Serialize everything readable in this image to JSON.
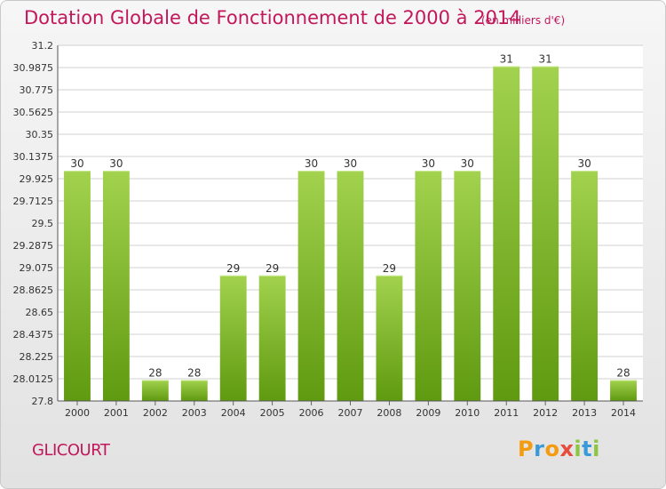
{
  "header": {
    "title": "Dotation Globale de Fonctionnement de 2000 à 2014",
    "unit": "(en milliers d'€)"
  },
  "footer": {
    "commune": "GLICOURT",
    "logo_letters": [
      "P",
      "r",
      "o",
      "x",
      "i",
      "t",
      "i"
    ],
    "logo_colors": [
      "#f39c12",
      "#3a9ad9",
      "#f39c12",
      "#e74c3c",
      "#8cc63f",
      "#3a9ad9",
      "#8cc63f"
    ]
  },
  "colors": {
    "bar_top": "#a2d24e",
    "bar_bottom": "#5f9a10",
    "grid": "#d0d0d0",
    "axis_text": "#333333",
    "title": "#c2185b"
  },
  "chart_data": {
    "type": "bar",
    "title": "Dotation Globale de Fonctionnement de 2000 à 2014",
    "subtitle": "(en milliers d'€)",
    "categories": [
      "2000",
      "2001",
      "2002",
      "2003",
      "2004",
      "2005",
      "2006",
      "2007",
      "2008",
      "2009",
      "2010",
      "2011",
      "2012",
      "2013",
      "2014"
    ],
    "values": [
      30,
      30,
      28,
      28,
      29,
      29,
      30,
      30,
      29,
      30,
      30,
      31,
      31,
      30,
      28
    ],
    "data_labels": [
      "30",
      "30",
      "28",
      "28",
      "29",
      "29",
      "30",
      "30",
      "29",
      "30",
      "30",
      "31",
      "31",
      "30",
      "28"
    ],
    "ylim": [
      27.8,
      31.2
    ],
    "yticks": [
      "27.8",
      "28.0125",
      "28.225",
      "28.4375",
      "28.65",
      "28.8625",
      "29.075",
      "29.2875",
      "29.5",
      "29.7125",
      "29.925",
      "30.1375",
      "30.35",
      "30.5625",
      "30.775",
      "30.9875",
      "31.2"
    ],
    "grid": true,
    "legend": "none"
  }
}
